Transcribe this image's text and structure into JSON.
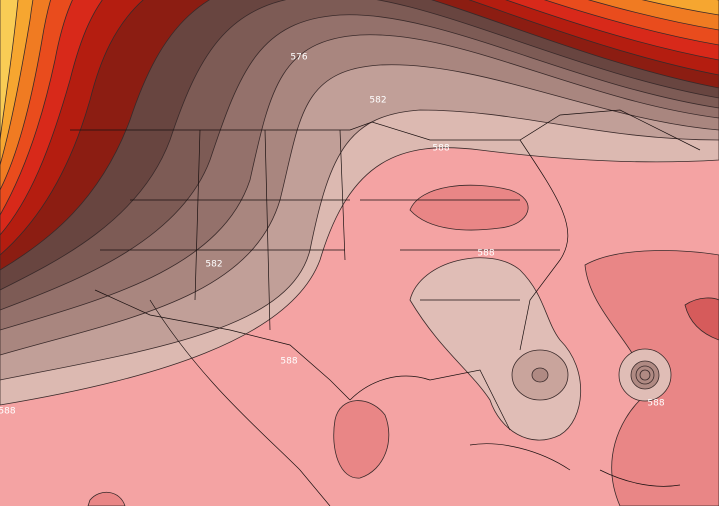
{
  "map": {
    "contour_labels": [
      "576",
      "582",
      "588",
      "582",
      "588",
      "588",
      "588",
      "588"
    ]
  }
}
